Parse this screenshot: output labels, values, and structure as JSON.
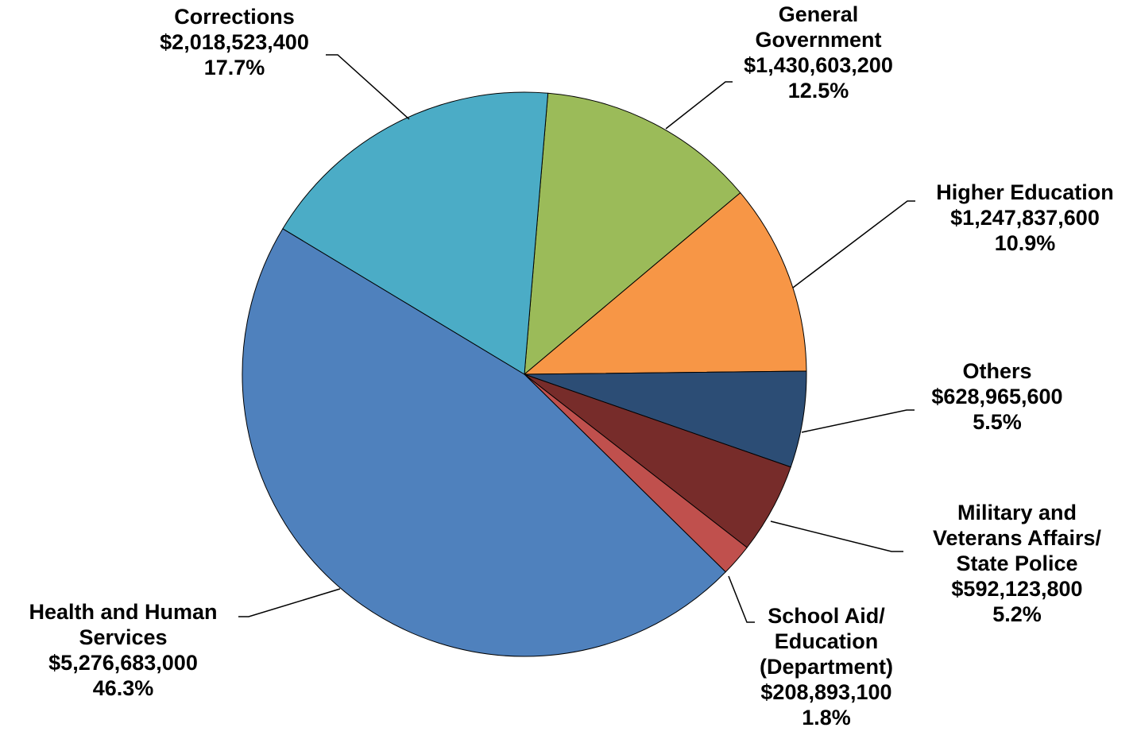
{
  "chart_data": {
    "type": "pie",
    "slices": [
      {
        "key": "general",
        "label_lines": [
          "General",
          "Government"
        ],
        "value": 1430603200,
        "value_label": "$1,430,603,200",
        "percent_label": "12.5%",
        "color": "#9BBB59"
      },
      {
        "key": "higher",
        "label_lines": [
          "Higher Education"
        ],
        "value": 1247837600,
        "value_label": "$1,247,837,600",
        "percent_label": "10.9%",
        "color": "#F79646"
      },
      {
        "key": "others",
        "label_lines": [
          "Others"
        ],
        "value": 628965600,
        "value_label": "$628,965,600",
        "percent_label": "5.5%",
        "color": "#2C4D75"
      },
      {
        "key": "military",
        "label_lines": [
          "Military and",
          "Veterans Affairs/",
          "State Police"
        ],
        "value": 592123800,
        "value_label": "$592,123,800",
        "percent_label": "5.2%",
        "color": "#772C2A"
      },
      {
        "key": "school",
        "label_lines": [
          "School Aid/",
          "Education",
          "(Department)"
        ],
        "value": 208893100,
        "value_label": "$208,893,100",
        "percent_label": "1.8%",
        "color": "#C0504D"
      },
      {
        "key": "hhs",
        "label_lines": [
          "Health and Human",
          "Services"
        ],
        "value": 5276683000,
        "value_label": "$5,276,683,000",
        "percent_label": "46.3%",
        "color": "#4F81BD"
      },
      {
        "key": "corrections",
        "label_lines": [
          "Corrections"
        ],
        "value": 2018523400,
        "value_label": "$2,018,523,400",
        "percent_label": "17.7%",
        "color": "#4BACC6"
      }
    ]
  }
}
